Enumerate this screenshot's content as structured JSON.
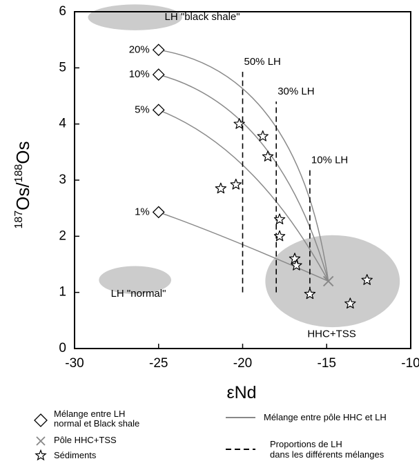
{
  "chart_data": {
    "type": "scatter",
    "title": "",
    "xlabel": "εNd",
    "ylabel": "187Os/188Os",
    "xlim": [
      -30,
      -10
    ],
    "ylim": [
      0,
      6
    ],
    "xticks": [
      "-30",
      "-25",
      "-20",
      "-15",
      "-10"
    ],
    "yticks": [
      "0",
      "1",
      "2",
      "3",
      "4",
      "5",
      "6"
    ],
    "grid": false,
    "fields": [
      {
        "name": "LH \"black shale\"",
        "cx": -26.4,
        "cy": 5.9,
        "rx": 2.8,
        "ry": 0.23,
        "label_x": -22.4,
        "label_y": 5.9
      },
      {
        "name": "LH \"normal\"",
        "cx": -26.4,
        "cy": 1.22,
        "rx": 2.15,
        "ry": 0.25,
        "label_x": -26.2,
        "label_y": 0.97
      },
      {
        "name": "HHC+TSS",
        "cx": -14.65,
        "cy": 1.2,
        "rx": 4.0,
        "ry": 0.82,
        "label_x": -14.7,
        "label_y": 0.25
      }
    ],
    "mixing_endmembers": [
      {
        "label": "20%",
        "x": -25.0,
        "y": 5.32
      },
      {
        "label": "10%",
        "x": -25.0,
        "y": 4.88
      },
      {
        "label": "5%",
        "x": -25.0,
        "y": 4.25
      },
      {
        "label": "1%",
        "x": -25.0,
        "y": 2.43
      }
    ],
    "pole": {
      "x": -14.9,
      "y": 1.2
    },
    "sediments": [
      {
        "x": -20.2,
        "y": 4.0
      },
      {
        "x": -18.8,
        "y": 3.78
      },
      {
        "x": -18.5,
        "y": 3.42
      },
      {
        "x": -21.3,
        "y": 2.85
      },
      {
        "x": -20.4,
        "y": 2.92
      },
      {
        "x": -17.8,
        "y": 2.3
      },
      {
        "x": -17.8,
        "y": 2.0
      },
      {
        "x": -16.9,
        "y": 1.6
      },
      {
        "x": -16.8,
        "y": 1.48
      },
      {
        "x": -16.0,
        "y": 0.97
      },
      {
        "x": -13.6,
        "y": 0.8
      },
      {
        "x": -12.6,
        "y": 1.22
      }
    ],
    "proportion_lines": [
      {
        "label": "50% LH",
        "x": -20.0,
        "y_bottom": 1.0,
        "y_top": 4.93
      },
      {
        "label": "30% LH",
        "x": -18.0,
        "y_bottom": 1.0,
        "y_top": 4.4
      },
      {
        "label": "10% LH",
        "x": -16.0,
        "y_bottom": 1.0,
        "y_top": 3.18
      }
    ]
  },
  "legend": {
    "diamond_line1": "Mélange entre LH",
    "diamond_line2": "normal et Black shale",
    "cross": "Pôle HHC+TSS",
    "star": "Sédiments",
    "solid": "Mélange entre pôle HHC et LH",
    "dashed_line1": "Proportions de LH",
    "dashed_line2": "dans les différents mélanges"
  }
}
